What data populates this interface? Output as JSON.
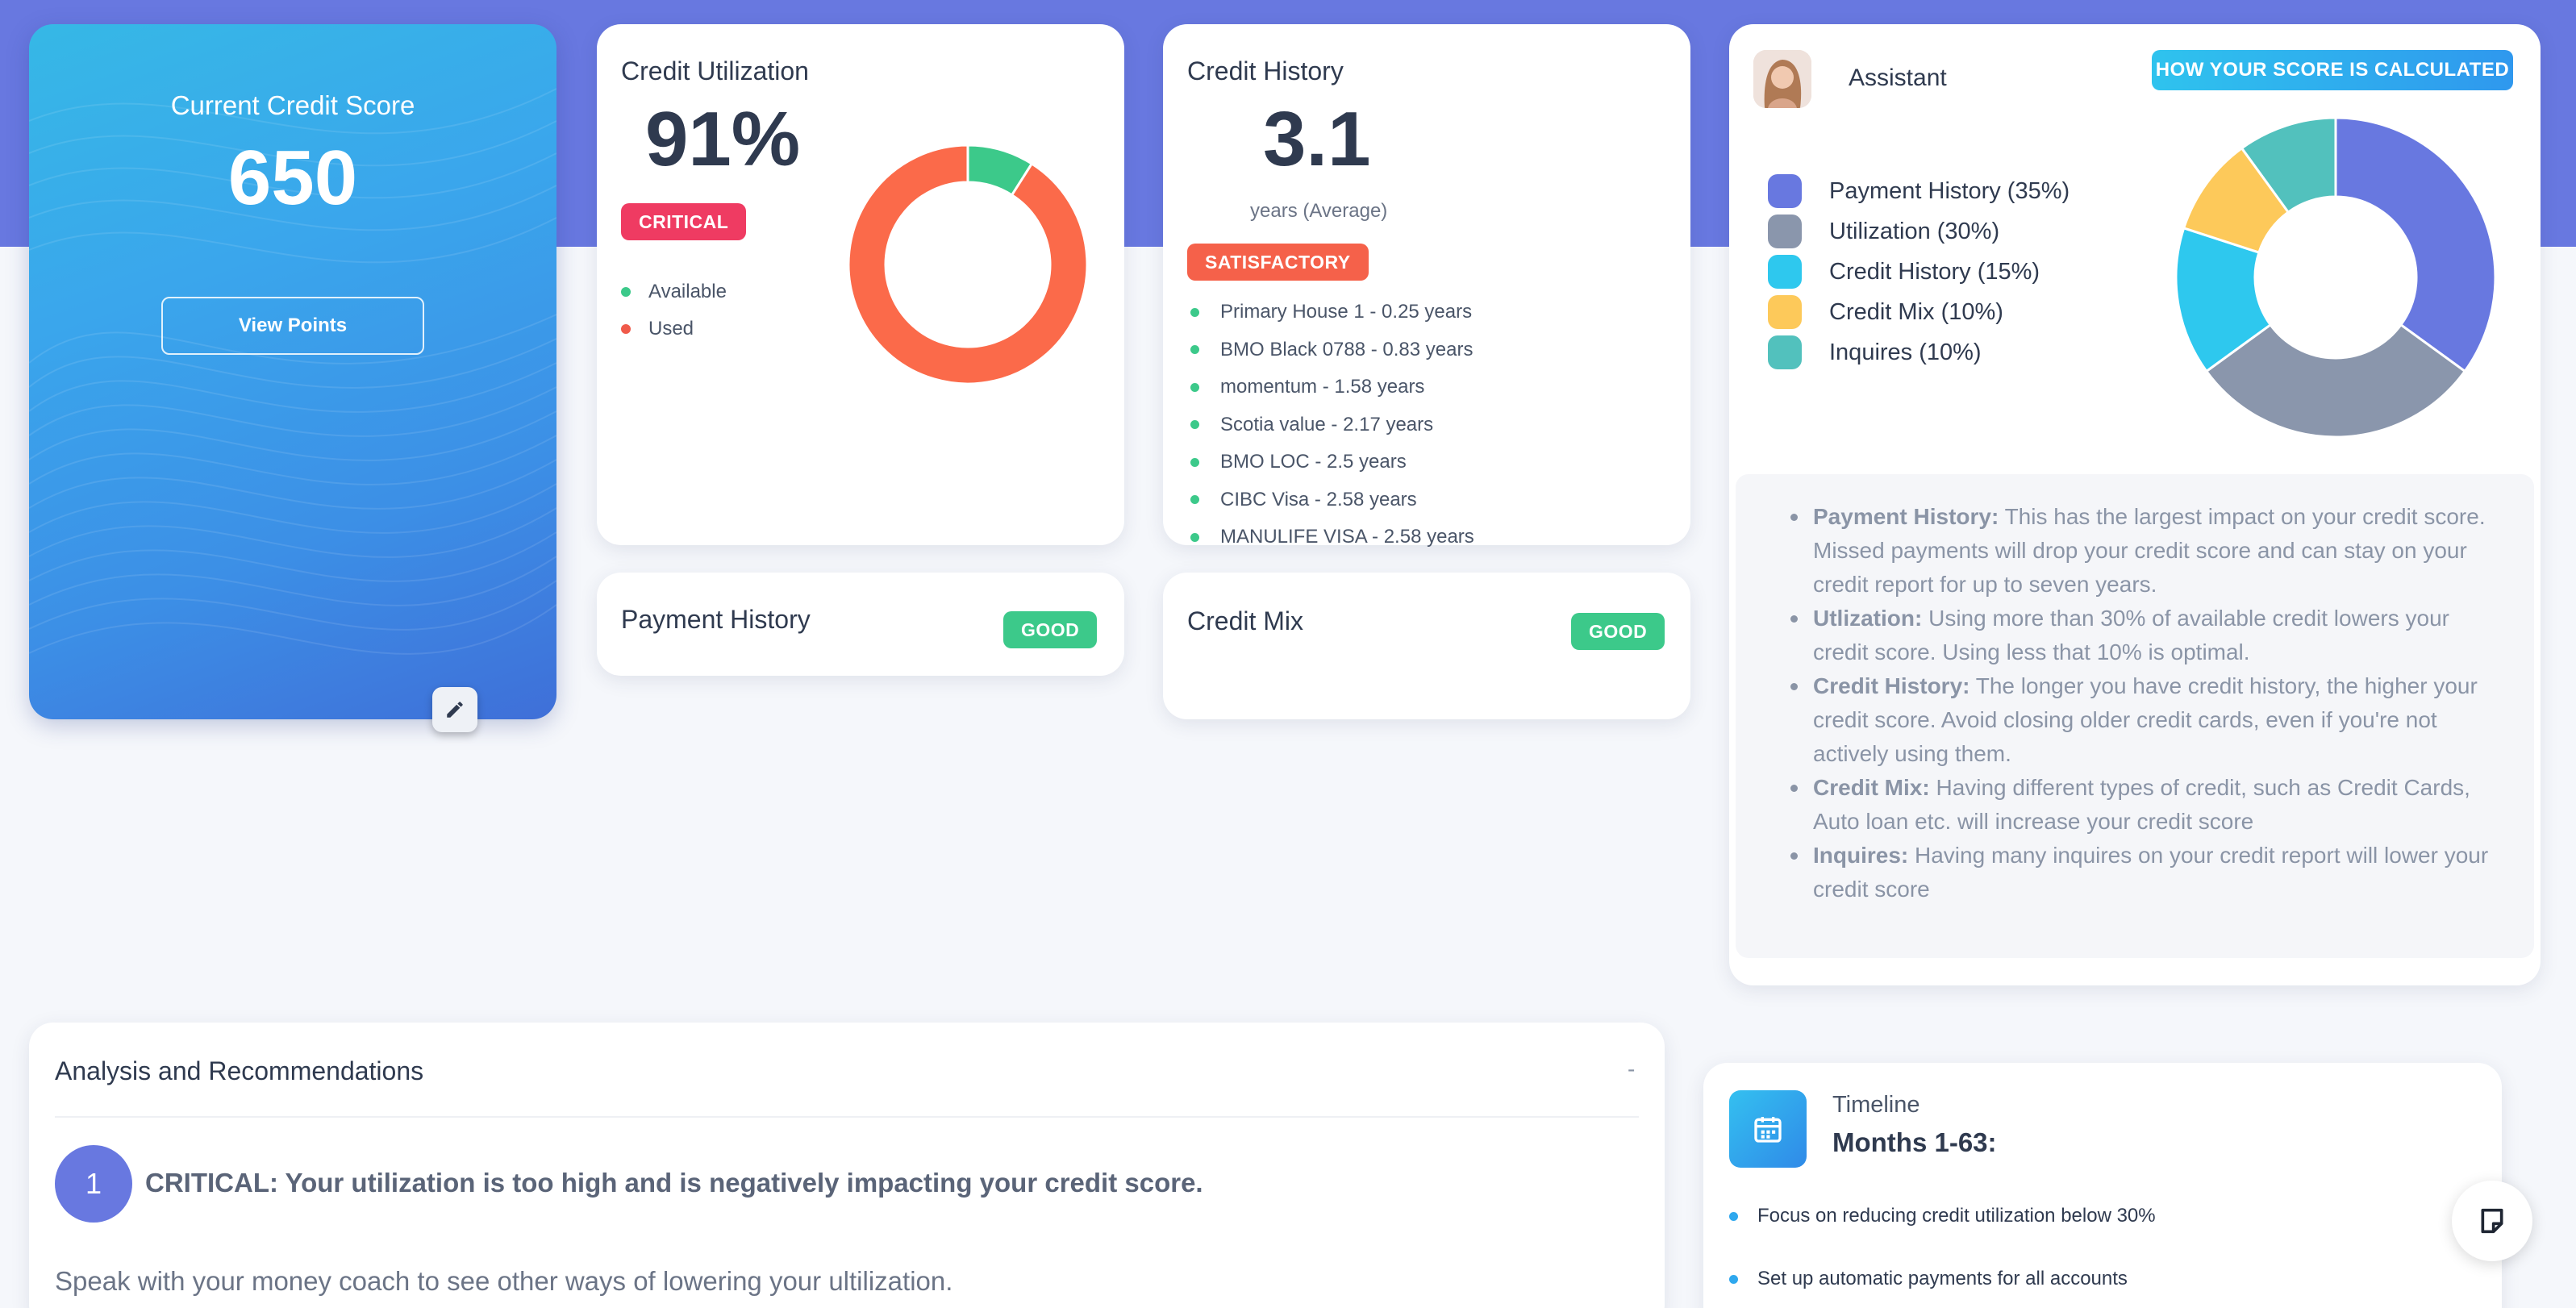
{
  "score": {
    "title": "Current Credit Score",
    "value": "650",
    "view_points_label": "View Points",
    "edit_icon": "pencil-icon"
  },
  "utilization": {
    "title": "Credit Utilization",
    "percent": "91%",
    "status": "CRITICAL",
    "legend": [
      {
        "label": "Available",
        "color": "#3cc98a"
      },
      {
        "label": "Used",
        "color": "#f05a4a"
      }
    ],
    "chart_data": {
      "type": "pie",
      "categories": [
        "Available",
        "Used"
      ],
      "values": [
        9,
        91
      ],
      "colors": [
        "#3cc98a",
        "#fb6a4a"
      ]
    }
  },
  "history": {
    "title": "Credit History",
    "value": "3.1",
    "unit": "years (Average)",
    "status": "SATISFACTORY",
    "accounts": [
      "Primary House 1 - 0.25 years",
      "BMO Black 0788 - 0.83 years",
      "momentum - 1.58 years",
      "Scotia value - 2.17 years",
      "BMO LOC - 2.5 years",
      "CIBC Visa - 2.58 years",
      "MANULIFE VISA - 2.58 years"
    ]
  },
  "payment_history": {
    "title": "Payment History",
    "status": "GOOD"
  },
  "credit_mix": {
    "title": "Credit Mix",
    "status": "GOOD"
  },
  "assistant": {
    "title": "Assistant",
    "how_label": "HOW YOUR SCORE IS CALCULATED",
    "factors": [
      {
        "label": "Payment History (35%)",
        "color": "#6878e0"
      },
      {
        "label": "Utilization (30%)",
        "color": "#8a96ac"
      },
      {
        "label": "Credit History (15%)",
        "color": "#2ec8ee"
      },
      {
        "label": "Credit Mix (10%)",
        "color": "#fdc95a"
      },
      {
        "label": "Inquires (10%)",
        "color": "#52c1bd"
      }
    ],
    "chart_data": {
      "type": "pie",
      "categories": [
        "Payment History",
        "Utilization",
        "Credit History",
        "Credit Mix",
        "Inquires"
      ],
      "values": [
        35,
        30,
        15,
        10,
        10
      ],
      "colors": [
        "#6878e0",
        "#8a96ac",
        "#2ec8ee",
        "#fdc95a",
        "#52c1bd"
      ]
    },
    "explanations": [
      {
        "term": "Payment History:",
        "text": " This has the largest impact on your credit score. Missed payments will drop your credit score and can stay on your credit report for up to seven years."
      },
      {
        "term": "Utlization:",
        "text": " Using more than 30% of available credit lowers your credit score. Using less that 10% is optimal."
      },
      {
        "term": "Credit History:",
        "text": " The longer you have credit history, the higher your credit score. Avoid closing older credit cards, even if you're not actively using them."
      },
      {
        "term": "Credit Mix:",
        "text": " Having different types of credit, such as Credit Cards, Auto loan etc. will increase your credit score"
      },
      {
        "term": "Inquires:",
        "text": " Having many inquires on your credit report will lower your credit score"
      }
    ]
  },
  "analysis": {
    "title": "Analysis and Recommendations",
    "collapse_label": "-",
    "step_number": "1",
    "heading": "CRITICAL: Your utilization is too high and is negatively impacting your credit score.",
    "text": "Speak with your money coach to see other ways of lowering your ultilization."
  },
  "timeline": {
    "label": "Timeline",
    "range": "Months 1-63:",
    "items": [
      "Focus on reducing credit utilization below 30%",
      "Set up automatic payments for all accounts"
    ]
  },
  "colors": {
    "header": "#6878e0",
    "critical": "#ef3b62",
    "satisfactory": "#f5614a",
    "good": "#3cc98a"
  }
}
